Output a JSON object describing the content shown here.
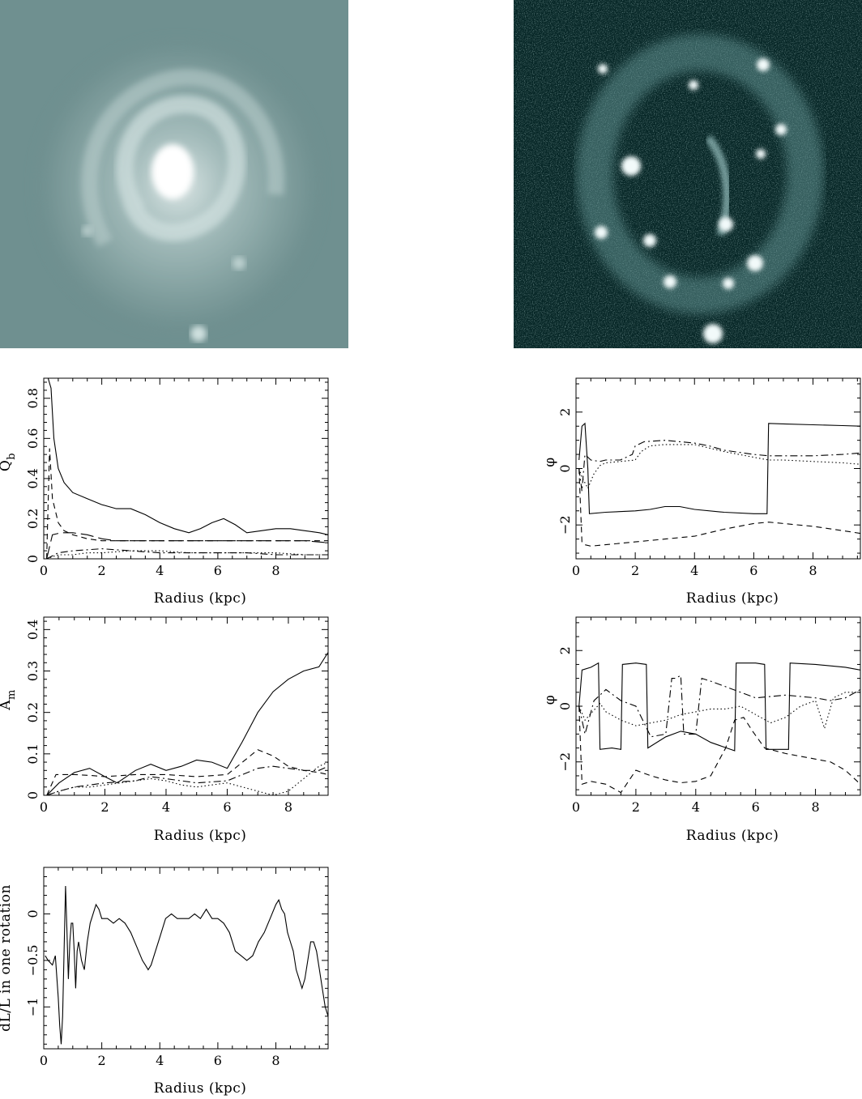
{
  "images": {
    "left": {
      "description_name": "galaxy-optical-image"
    },
    "right": {
      "description_name": "galaxy-halpha-image"
    }
  },
  "chart_data": [
    {
      "id": "qb",
      "type": "line",
      "xlabel": "Radius (kpc)",
      "ylabel": "Q",
      "ylabel_sub": "b",
      "xlim": [
        0,
        9.8
      ],
      "ylim": [
        0,
        0.9
      ],
      "xticks": [
        0,
        2,
        4,
        6,
        8
      ],
      "yticks": [
        0,
        0.2,
        0.4,
        0.6,
        0.8
      ],
      "ytick_labels": [
        "0",
        "0.2",
        "0.4",
        "0.6",
        "0.8"
      ],
      "grid": false,
      "series": [
        {
          "style": "solid",
          "x": [
            0.15,
            0.25,
            0.35,
            0.5,
            0.7,
            1.0,
            1.5,
            2.0,
            2.5,
            3.0,
            3.5,
            4.0,
            4.5,
            5.0,
            5.4,
            5.8,
            6.2,
            6.6,
            7.0,
            7.5,
            8.0,
            8.5,
            9.0,
            9.5,
            9.8
          ],
          "y": [
            0.9,
            0.85,
            0.6,
            0.45,
            0.38,
            0.33,
            0.3,
            0.27,
            0.25,
            0.25,
            0.22,
            0.18,
            0.15,
            0.13,
            0.15,
            0.18,
            0.2,
            0.17,
            0.13,
            0.14,
            0.15,
            0.15,
            0.14,
            0.13,
            0.12
          ]
        },
        {
          "style": "dashed",
          "x": [
            0.1,
            0.2,
            0.3,
            0.5,
            0.7,
            1.0,
            1.5,
            2.0,
            3.0,
            4.0,
            5.0,
            6.0,
            7.0,
            8.0,
            9.0,
            9.8
          ],
          "y": [
            0.0,
            0.55,
            0.3,
            0.18,
            0.14,
            0.12,
            0.1,
            0.09,
            0.09,
            0.09,
            0.09,
            0.09,
            0.09,
            0.09,
            0.09,
            0.09
          ]
        },
        {
          "style": "longdash",
          "x": [
            0.1,
            0.3,
            0.6,
            1.0,
            1.5,
            2.0,
            2.5,
            3.0,
            4.0,
            5.0,
            6.0,
            7.0,
            8.0,
            9.0,
            9.8
          ],
          "y": [
            0.0,
            0.12,
            0.13,
            0.13,
            0.12,
            0.1,
            0.09,
            0.09,
            0.09,
            0.09,
            0.09,
            0.09,
            0.09,
            0.09,
            0.08
          ]
        },
        {
          "style": "dotted",
          "x": [
            0.1,
            0.5,
            1.0,
            1.5,
            2.0,
            3.0,
            4.0,
            5.0,
            6.0,
            7.0,
            8.0,
            9.0,
            9.8
          ],
          "y": [
            0.0,
            0.02,
            0.02,
            0.03,
            0.03,
            0.04,
            0.04,
            0.03,
            0.03,
            0.03,
            0.03,
            0.02,
            0.02
          ]
        },
        {
          "style": "dashdot",
          "x": [
            0.1,
            0.5,
            1.0,
            2.0,
            3.0,
            4.0,
            5.0,
            6.0,
            7.0,
            8.0,
            9.0,
            9.8
          ],
          "y": [
            0.0,
            0.03,
            0.04,
            0.05,
            0.04,
            0.03,
            0.03,
            0.03,
            0.03,
            0.02,
            0.02,
            0.02
          ]
        }
      ]
    },
    {
      "id": "phi-top",
      "type": "line",
      "xlabel": "Radius (kpc)",
      "ylabel": "φ",
      "xlim": [
        0,
        9.6
      ],
      "ylim": [
        -3.2,
        3.2
      ],
      "xticks": [
        0,
        2,
        4,
        6,
        8
      ],
      "yticks": [
        -2,
        0,
        2
      ],
      "ytick_labels": [
        "−2",
        "0",
        "2"
      ],
      "grid": false,
      "series": [
        {
          "style": "solid",
          "x": [
            0.1,
            0.2,
            0.3,
            0.4,
            0.45,
            1.0,
            2.0,
            2.5,
            3.0,
            3.5,
            4.0,
            5.0,
            6.0,
            6.45,
            6.5,
            7.0,
            8.0,
            9.0,
            9.6
          ],
          "y": [
            0.3,
            1.5,
            1.6,
            0.0,
            -1.6,
            -1.55,
            -1.5,
            -1.45,
            -1.35,
            -1.35,
            -1.45,
            -1.55,
            -1.6,
            -1.6,
            1.6,
            1.58,
            1.55,
            1.52,
            1.5
          ]
        },
        {
          "style": "dashed",
          "x": [
            0.1,
            0.2,
            0.3,
            0.5,
            1.0,
            2.0,
            3.0,
            4.0,
            5.0,
            6.0,
            6.5,
            7.0,
            8.0,
            9.0,
            9.6
          ],
          "y": [
            0.0,
            -2.6,
            -2.7,
            -2.75,
            -2.7,
            -2.6,
            -2.5,
            -2.4,
            -2.15,
            -1.95,
            -1.9,
            -1.95,
            -2.05,
            -2.2,
            -2.3
          ]
        },
        {
          "style": "dotted",
          "x": [
            0.1,
            0.2,
            0.4,
            0.6,
            0.8,
            1.0,
            1.5,
            2.0,
            2.2,
            2.5,
            3.0,
            4.0,
            5.0,
            6.0,
            6.5,
            7.0,
            8.0,
            9.0,
            9.6
          ],
          "y": [
            0.0,
            -0.3,
            -0.7,
            -0.2,
            0.1,
            0.2,
            0.25,
            0.3,
            0.6,
            0.8,
            0.85,
            0.85,
            0.6,
            0.4,
            0.3,
            0.3,
            0.25,
            0.2,
            0.15
          ]
        },
        {
          "style": "dashdot",
          "x": [
            0.1,
            0.2,
            0.3,
            0.5,
            0.8,
            1.0,
            1.5,
            1.9,
            2.0,
            2.3,
            3.0,
            3.5,
            4.0,
            4.5,
            5.0,
            6.0,
            6.5,
            7.0,
            8.0,
            9.0,
            9.6
          ],
          "y": [
            0.0,
            -0.8,
            0.5,
            0.3,
            0.25,
            0.3,
            0.3,
            0.5,
            0.8,
            0.95,
            1.0,
            0.95,
            0.9,
            0.8,
            0.65,
            0.5,
            0.45,
            0.45,
            0.45,
            0.5,
            0.55
          ]
        }
      ]
    },
    {
      "id": "am",
      "type": "line",
      "xlabel": "Radius (kpc)",
      "ylabel": "A",
      "ylabel_sub": "m",
      "xlim": [
        0,
        9.3
      ],
      "ylim": [
        0,
        0.43
      ],
      "xticks": [
        0,
        2,
        4,
        6,
        8
      ],
      "yticks": [
        0,
        0.1,
        0.2,
        0.3,
        0.4
      ],
      "ytick_labels": [
        "0",
        "0.1",
        "0.2",
        "0.3",
        "0.4"
      ],
      "grid": false,
      "series": [
        {
          "style": "solid",
          "x": [
            0.1,
            0.5,
            1.0,
            1.5,
            2.0,
            2.4,
            3.0,
            3.5,
            4.0,
            4.5,
            5.0,
            5.5,
            6.0,
            6.5,
            7.0,
            7.5,
            8.0,
            8.5,
            9.0,
            9.3
          ],
          "y": [
            0.0,
            0.03,
            0.055,
            0.065,
            0.045,
            0.03,
            0.06,
            0.075,
            0.06,
            0.07,
            0.085,
            0.08,
            0.065,
            0.13,
            0.2,
            0.25,
            0.28,
            0.3,
            0.31,
            0.345
          ]
        },
        {
          "style": "dashed",
          "x": [
            0.1,
            0.4,
            1.0,
            1.5,
            2.0,
            3.0,
            4.0,
            5.0,
            6.0,
            6.5,
            7.0,
            7.5,
            8.0,
            8.5,
            9.0,
            9.3
          ],
          "y": [
            0.0,
            0.05,
            0.05,
            0.048,
            0.045,
            0.05,
            0.05,
            0.045,
            0.05,
            0.08,
            0.11,
            0.095,
            0.07,
            0.06,
            0.055,
            0.05
          ]
        },
        {
          "style": "dashdot",
          "x": [
            0.1,
            0.5,
            1.0,
            2.0,
            3.0,
            3.5,
            4.0,
            5.0,
            6.0,
            6.5,
            7.0,
            7.5,
            8.0,
            8.5,
            9.0,
            9.3
          ],
          "y": [
            0.0,
            0.01,
            0.02,
            0.03,
            0.035,
            0.045,
            0.04,
            0.03,
            0.035,
            0.05,
            0.065,
            0.07,
            0.065,
            0.06,
            0.06,
            0.07
          ]
        },
        {
          "style": "dotted",
          "x": [
            0.1,
            0.5,
            1.0,
            1.5,
            2.0,
            2.5,
            3.0,
            3.5,
            4.0,
            4.5,
            5.0,
            5.5,
            6.0,
            6.5,
            7.0,
            7.5,
            8.0,
            8.5,
            9.0,
            9.3
          ],
          "y": [
            0.0,
            0.01,
            0.02,
            0.02,
            0.025,
            0.03,
            0.035,
            0.04,
            0.035,
            0.025,
            0.02,
            0.025,
            0.03,
            0.02,
            0.01,
            0.0,
            0.01,
            0.04,
            0.07,
            0.08
          ]
        }
      ]
    },
    {
      "id": "phi-bottom",
      "type": "line",
      "xlabel": "Radius (kpc)",
      "ylabel": "φ",
      "xlim": [
        0,
        9.5
      ],
      "ylim": [
        -3.2,
        3.2
      ],
      "xticks": [
        0,
        2,
        4,
        6,
        8
      ],
      "yticks": [
        -2,
        0,
        2
      ],
      "ytick_labels": [
        "−2",
        "0",
        "2"
      ],
      "grid": false,
      "series": [
        {
          "style": "solid",
          "x": [
            0.1,
            0.2,
            0.5,
            0.75,
            0.8,
            1.2,
            1.5,
            1.55,
            2.0,
            2.35,
            2.4,
            3.0,
            3.5,
            4.0,
            4.5,
            5.3,
            5.35,
            6.0,
            6.3,
            6.35,
            7.1,
            7.15,
            8.0,
            9.0,
            9.5
          ],
          "y": [
            0.0,
            1.3,
            1.4,
            1.55,
            -1.55,
            -1.5,
            -1.55,
            1.5,
            1.55,
            1.5,
            -1.5,
            -1.1,
            -0.9,
            -1.0,
            -1.3,
            -1.6,
            1.55,
            1.55,
            1.5,
            -1.55,
            -1.55,
            1.55,
            1.5,
            1.4,
            1.3
          ]
        },
        {
          "style": "dashed",
          "x": [
            0.1,
            0.2,
            0.5,
            1.0,
            1.5,
            2.0,
            2.5,
            3.0,
            3.5,
            4.0,
            4.5,
            5.0,
            5.3,
            5.6,
            5.9,
            6.3,
            7.0,
            8.0,
            8.5,
            9.0,
            9.5
          ],
          "y": [
            0.0,
            -2.8,
            -2.7,
            -2.8,
            -3.1,
            -2.3,
            -2.5,
            -2.65,
            -2.75,
            -2.7,
            -2.5,
            -1.5,
            -0.5,
            -0.4,
            -0.9,
            -1.5,
            -1.7,
            -1.9,
            -2.0,
            -2.3,
            -2.8
          ]
        },
        {
          "style": "dashdot",
          "x": [
            0.1,
            0.3,
            0.6,
            1.0,
            1.5,
            2.0,
            2.5,
            3.0,
            3.2,
            3.3,
            3.5,
            3.6,
            4.0,
            4.2,
            4.5,
            5.0,
            5.5,
            6.0,
            7.0,
            8.0,
            8.5,
            9.0,
            9.5
          ],
          "y": [
            0.0,
            -1.0,
            0.2,
            0.6,
            0.2,
            0.0,
            -1.1,
            -1.0,
            1.0,
            1.0,
            1.1,
            -1.0,
            -1.0,
            1.0,
            0.9,
            0.7,
            0.5,
            0.3,
            0.4,
            0.3,
            0.2,
            0.3,
            0.6
          ]
        },
        {
          "style": "dotted",
          "x": [
            0.1,
            0.3,
            0.8,
            1.0,
            1.5,
            2.0,
            2.5,
            3.0,
            3.5,
            4.0,
            4.5,
            5.0,
            5.5,
            6.0,
            6.5,
            7.0,
            7.5,
            8.0,
            8.3,
            8.6,
            9.0,
            9.5
          ],
          "y": [
            0.0,
            -0.5,
            0.1,
            -0.2,
            -0.5,
            -0.7,
            -0.6,
            -0.5,
            -0.3,
            -0.2,
            -0.1,
            -0.1,
            0.0,
            -0.3,
            -0.6,
            -0.4,
            0.0,
            0.2,
            -0.8,
            0.3,
            0.5,
            0.5
          ]
        }
      ]
    },
    {
      "id": "dl",
      "type": "line",
      "xlabel": "Radius (kpc)",
      "ylabel": "dL/L in one rotation",
      "xlim": [
        0,
        9.8
      ],
      "ylim": [
        -1.45,
        0.5
      ],
      "xticks": [
        0,
        2,
        4,
        6,
        8
      ],
      "yticks": [
        -1,
        -0.5,
        0
      ],
      "ytick_labels": [
        "−1",
        "−0.5",
        "0"
      ],
      "grid": false,
      "series": [
        {
          "style": "solid",
          "x": [
            0.05,
            0.15,
            0.3,
            0.4,
            0.5,
            0.55,
            0.6,
            0.65,
            0.7,
            0.75,
            0.8,
            0.85,
            0.9,
            0.95,
            1.0,
            1.05,
            1.1,
            1.15,
            1.2,
            1.3,
            1.4,
            1.5,
            1.6,
            1.7,
            1.8,
            1.9,
            2.0,
            2.2,
            2.4,
            2.6,
            2.8,
            3.0,
            3.2,
            3.4,
            3.5,
            3.6,
            3.7,
            3.8,
            4.0,
            4.2,
            4.4,
            4.6,
            4.8,
            5.0,
            5.2,
            5.4,
            5.6,
            5.8,
            6.0,
            6.2,
            6.4,
            6.6,
            6.8,
            7.0,
            7.2,
            7.4,
            7.6,
            7.8,
            8.0,
            8.1,
            8.2,
            8.3,
            8.4,
            8.5,
            8.6,
            8.7,
            8.8,
            8.9,
            9.0,
            9.1,
            9.2,
            9.3,
            9.4,
            9.5,
            9.6,
            9.7,
            9.8
          ],
          "y": [
            -0.45,
            -0.5,
            -0.55,
            -0.45,
            -0.9,
            -1.2,
            -1.4,
            -1.1,
            -0.4,
            0.3,
            -0.2,
            -0.7,
            -0.3,
            -0.1,
            -0.1,
            -0.4,
            -0.8,
            -0.4,
            -0.3,
            -0.5,
            -0.6,
            -0.3,
            -0.1,
            0.0,
            0.1,
            0.05,
            -0.05,
            -0.05,
            -0.1,
            -0.05,
            -0.1,
            -0.2,
            -0.35,
            -0.5,
            -0.55,
            -0.6,
            -0.55,
            -0.45,
            -0.25,
            -0.05,
            0.0,
            -0.05,
            -0.05,
            -0.05,
            0.0,
            -0.05,
            0.05,
            -0.05,
            -0.05,
            -0.1,
            -0.2,
            -0.4,
            -0.45,
            -0.5,
            -0.45,
            -0.3,
            -0.2,
            -0.05,
            0.1,
            0.15,
            0.05,
            0.0,
            -0.2,
            -0.3,
            -0.4,
            -0.6,
            -0.7,
            -0.8,
            -0.7,
            -0.5,
            -0.3,
            -0.3,
            -0.4,
            -0.6,
            -0.8,
            -1.0,
            -1.1
          ]
        }
      ]
    }
  ]
}
